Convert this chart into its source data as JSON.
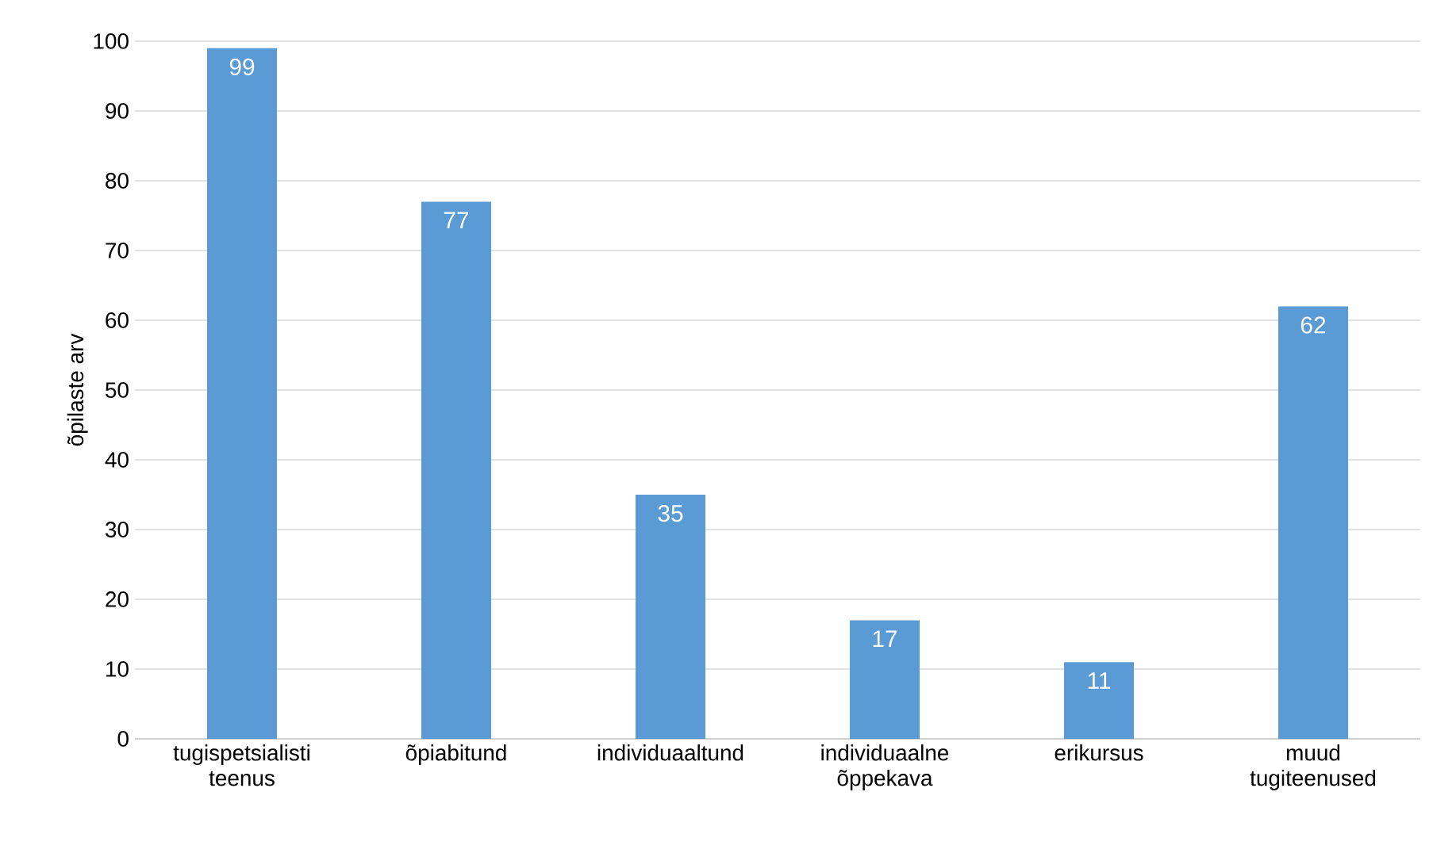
{
  "chart_data": {
    "type": "bar",
    "ylabel": "õpilaste arv",
    "categories": [
      "tugispetsialisti teenus",
      "õpiabitund",
      "individuaaltund",
      "individuaalne õppekava",
      "erikursus",
      "muud tugiteenused"
    ],
    "values": [
      99,
      77,
      35,
      17,
      11,
      62
    ],
    "color": "#5b9bd5",
    "ylim": [
      0,
      100
    ],
    "yticks": [
      0,
      10,
      20,
      30,
      40,
      50,
      60,
      70,
      80,
      90,
      100
    ],
    "grid": "y",
    "data_labels": true
  }
}
